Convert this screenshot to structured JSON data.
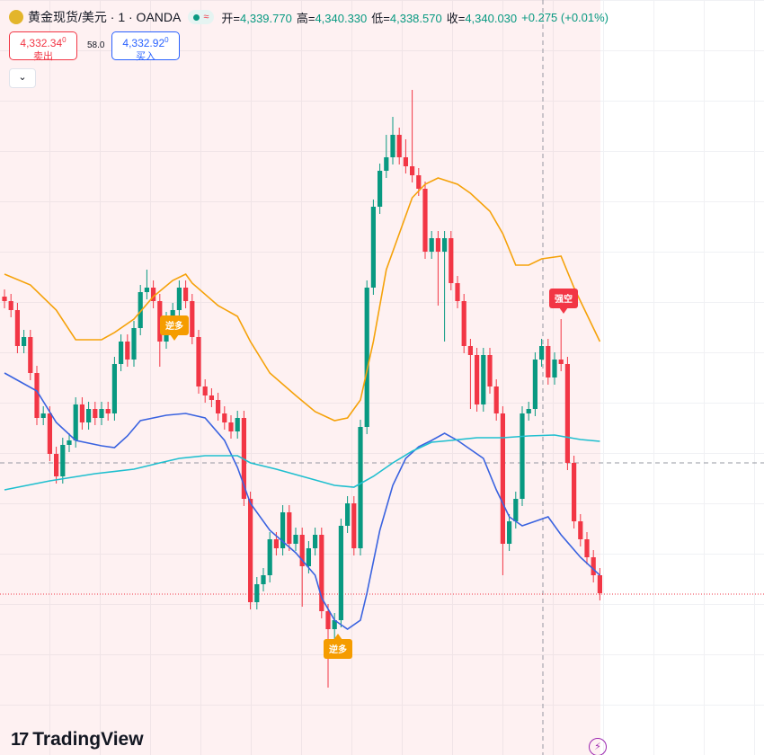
{
  "header": {
    "symbol": "黄金现货/美元 · 1 · OANDA",
    "ohlc": [
      {
        "label": "开=",
        "value": "4,339.770"
      },
      {
        "label": "高=",
        "value": "4,340.330"
      },
      {
        "label": "低=",
        "value": "4,338.570"
      },
      {
        "label": "收=",
        "value": "4,340.030"
      }
    ],
    "change": "+0.275 (+0.01%)"
  },
  "trade": {
    "sell": {
      "price": "4,332.34",
      "sup": "0",
      "label": "卖出"
    },
    "spread": "58.0",
    "buy": {
      "price": "4,332.92",
      "sup": "0",
      "label": "买入"
    }
  },
  "chart_data": {
    "type": "candlestick",
    "ylim": [
      4336.45,
      4353.25
    ],
    "up_color": "#089981",
    "down_color": "#f23645",
    "open": [
      4346.65,
      4346.55,
      4346.35,
      4345.55,
      4345.75,
      4344.95,
      4343.95,
      4344.05,
      4343.15,
      4342.65,
      4343.35,
      4343.45,
      4344.25,
      4343.85,
      4344.15,
      4343.95,
      4344.15,
      4344.05,
      4345.15,
      4345.65,
      4345.25,
      4345.95,
      4346.75,
      4346.85,
      4346.55,
      4345.65,
      4346.15,
      4346.35,
      4346.85,
      4346.55,
      4345.75,
      4344.65,
      4344.45,
      4344.35,
      4344.05,
      4343.85,
      4343.65,
      4343.95,
      4342.15,
      4339.85,
      4340.25,
      4340.45,
      4341.25,
      4341.05,
      4341.85,
      4341.15,
      4341.35,
      4340.65,
      4341.05,
      4341.35,
      4339.65,
      4339.25,
      4339.45,
      4341.55,
      4342.05,
      4341.05,
      4343.75,
      4346.85,
      4348.65,
      4349.45,
      4349.75,
      4350.25,
      4349.75,
      4349.55,
      4349.35,
      4349.05,
      4347.65,
      4347.95,
      4347.65,
      4347.95,
      4346.95,
      4346.55,
      4345.55,
      4345.35,
      4344.25,
      4345.35,
      4344.65,
      4344.05,
      4341.15,
      4341.65,
      4342.15,
      4344.05,
      4344.15,
      4345.25,
      4345.55,
      4344.85,
      4345.25,
      4345.15,
      4342.95,
      4341.65,
      4341.25,
      4340.85,
      4340.45
    ],
    "high": [
      4346.81,
      4346.71,
      4346.51,
      4345.91,
      4345.91,
      4345.11,
      4344.21,
      4344.21,
      4343.31,
      4343.51,
      4343.61,
      4344.41,
      4344.41,
      4344.31,
      4344.31,
      4344.31,
      4344.31,
      4345.31,
      4345.81,
      4345.81,
      4346.11,
      4346.91,
      4347.25,
      4347.01,
      4346.71,
      4346.31,
      4346.51,
      4347.01,
      4347.01,
      4346.71,
      4345.91,
      4344.81,
      4344.61,
      4344.51,
      4344.21,
      4344.01,
      4344.11,
      4344.11,
      4342.31,
      4340.41,
      4340.61,
      4341.41,
      4341.41,
      4342.01,
      4342.01,
      4341.51,
      4341.51,
      4341.21,
      4341.51,
      4341.51,
      4339.81,
      4339.61,
      4341.71,
      4342.21,
      4342.21,
      4343.91,
      4347.01,
      4348.81,
      4349.61,
      4350.25,
      4350.65,
      4350.41,
      4350.15,
      4351.25,
      4349.51,
      4349.21,
      4348.11,
      4348.11,
      4348.11,
      4348.11,
      4347.11,
      4346.71,
      4345.71,
      4345.51,
      4345.51,
      4345.51,
      4344.81,
      4344.21,
      4341.81,
      4342.31,
      4344.21,
      4344.31,
      4345.41,
      4345.71,
      4345.71,
      4345.41,
      4346.15,
      4345.31,
      4343.11,
      4341.81,
      4341.41,
      4341.01,
      4340.61
    ],
    "low": [
      4346.39,
      4346.19,
      4345.39,
      4345.39,
      4344.79,
      4343.79,
      4343.79,
      4342.99,
      4342.49,
      4342.49,
      4343.19,
      4343.29,
      4343.69,
      4343.69,
      4343.79,
      4343.79,
      4343.89,
      4343.89,
      4344.99,
      4345.09,
      4345.09,
      4345.79,
      4346.59,
      4346.39,
      4345.09,
      4345.49,
      4345.99,
      4346.19,
      4346.39,
      4345.59,
      4344.49,
      4344.29,
      4344.19,
      4343.89,
      4343.69,
      4343.49,
      4343.49,
      4341.99,
      4339.69,
      4339.69,
      4340.09,
      4340.29,
      4340.89,
      4340.89,
      4340.99,
      4340.99,
      4339.75,
      4340.49,
      4340.89,
      4339.49,
      4337.95,
      4338.75,
      4339.29,
      4341.39,
      4340.89,
      4340.89,
      4343.59,
      4346.69,
      4348.49,
      4349.29,
      4349.59,
      4349.59,
      4349.39,
      4349.19,
      4348.89,
      4347.49,
      4347.49,
      4346.45,
      4345.65,
      4346.79,
      4346.39,
      4345.39,
      4344.15,
      4344.09,
      4344.09,
      4344.49,
      4343.89,
      4340.45,
      4340.99,
      4341.49,
      4341.99,
      4343.89,
      4343.99,
      4345.09,
      4344.69,
      4344.69,
      4344.99,
      4342.79,
      4341.49,
      4341.09,
      4340.69,
      4340.29,
      4339.89
    ],
    "close": [
      4346.55,
      4346.35,
      4345.55,
      4345.75,
      4344.95,
      4343.95,
      4344.05,
      4343.15,
      4342.65,
      4343.35,
      4343.45,
      4344.25,
      4343.85,
      4344.15,
      4343.95,
      4344.15,
      4344.05,
      4345.15,
      4345.65,
      4345.25,
      4345.95,
      4346.75,
      4346.85,
      4346.55,
      4345.65,
      4346.15,
      4346.35,
      4346.85,
      4346.55,
      4345.75,
      4344.65,
      4344.45,
      4344.35,
      4344.05,
      4343.85,
      4343.65,
      4343.95,
      4342.15,
      4339.85,
      4340.25,
      4340.45,
      4341.25,
      4341.05,
      4341.85,
      4341.15,
      4341.35,
      4340.65,
      4341.05,
      4341.35,
      4339.65,
      4339.25,
      4339.45,
      4341.55,
      4342.05,
      4341.05,
      4343.75,
      4346.85,
      4348.65,
      4349.45,
      4349.75,
      4350.25,
      4349.75,
      4349.55,
      4349.35,
      4349.05,
      4347.65,
      4347.95,
      4347.65,
      4347.95,
      4346.95,
      4346.55,
      4345.55,
      4345.35,
      4344.25,
      4345.35,
      4344.65,
      4344.05,
      4341.15,
      4341.65,
      4342.15,
      4344.05,
      4344.15,
      4345.25,
      4345.55,
      4344.85,
      4345.25,
      4345.15,
      4342.95,
      4341.65,
      4341.25,
      4340.85,
      4340.45,
      4340.05
    ],
    "last_price": 4340.03,
    "last_price_color": "#f23645",
    "lines": [
      {
        "color": "#f5a20a",
        "x": [
          0,
          4,
          8,
          11,
          15,
          17,
          20,
          23,
          26,
          28,
          29,
          33,
          36,
          38,
          41,
          45,
          48,
          51,
          53,
          55,
          57,
          59,
          61,
          63,
          65,
          67,
          70,
          72,
          75,
          77,
          79,
          81,
          83,
          86,
          88,
          92
        ],
        "values": [
          4347.15,
          4346.91,
          4346.35,
          4345.69,
          4345.69,
          4345.85,
          4346.15,
          4346.65,
          4347.01,
          4347.15,
          4346.95,
          4346.45,
          4346.21,
          4345.65,
          4344.95,
          4344.45,
          4344.09,
          4343.89,
          4343.95,
          4344.35,
          4345.65,
          4347.25,
          4348.05,
          4348.85,
          4349.15,
          4349.29,
          4349.15,
          4348.95,
          4348.55,
          4348.05,
          4347.35,
          4347.35,
          4347.49,
          4347.55,
          4346.85,
          4345.65
        ]
      },
      {
        "color": "#3a63e0",
        "x": [
          0,
          2,
          5,
          8,
          11,
          15,
          17,
          19,
          21,
          25,
          28,
          31,
          34,
          36,
          38,
          41,
          45,
          48,
          49,
          51,
          53,
          55,
          56,
          58,
          60,
          62,
          64,
          66,
          68,
          70,
          74,
          76,
          78,
          80,
          82,
          84,
          86,
          89,
          92
        ],
        "values": [
          4344.95,
          4344.79,
          4344.55,
          4343.85,
          4343.45,
          4343.33,
          4343.29,
          4343.55,
          4343.89,
          4344.01,
          4344.05,
          4343.95,
          4343.45,
          4342.85,
          4342.05,
          4341.45,
          4340.95,
          4340.45,
          4339.95,
          4339.45,
          4339.25,
          4339.45,
          4340.05,
          4341.45,
          4342.45,
          4343.05,
          4343.31,
          4343.45,
          4343.61,
          4343.45,
          4343.05,
          4342.35,
          4341.75,
          4341.55,
          4341.65,
          4341.75,
          4341.35,
          4340.85,
          4340.45
        ]
      },
      {
        "color": "#1fbfcf",
        "x": [
          0,
          7,
          14,
          20,
          24,
          27,
          31,
          36,
          38,
          42,
          46,
          51,
          54,
          57,
          60,
          63,
          66,
          69,
          73,
          77,
          81,
          85,
          89,
          92
        ],
        "values": [
          4342.35,
          4342.55,
          4342.71,
          4342.81,
          4342.95,
          4343.05,
          4343.11,
          4343.11,
          4342.95,
          4342.81,
          4342.65,
          4342.45,
          4342.41,
          4342.65,
          4342.95,
          4343.21,
          4343.41,
          4343.45,
          4343.51,
          4343.51,
          4343.55,
          4343.57,
          4343.47,
          4343.43
        ]
      }
    ],
    "signals": [
      {
        "label": "逆多",
        "color": "#f59c00"
      },
      {
        "label": "逆多",
        "color": "#f59c00"
      },
      {
        "label": "强空",
        "color": "#f23645"
      }
    ]
  },
  "footer": {
    "logo": "TradingView"
  }
}
